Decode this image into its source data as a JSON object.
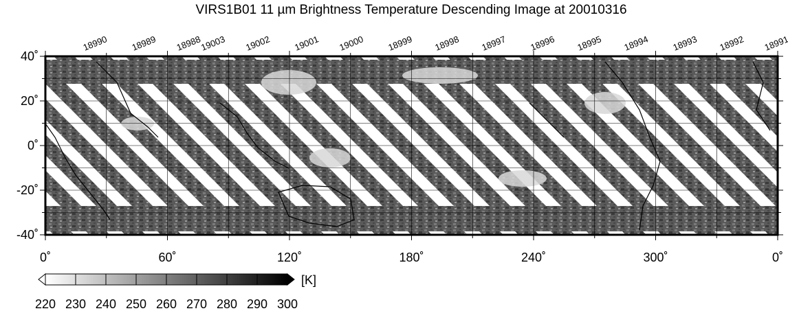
{
  "title": "VIRS1B01 11 µm Brightness Temperature Descending Image at 20010316",
  "map": {
    "lon_range": [
      0,
      360
    ],
    "lat_range": [
      -40,
      40
    ],
    "lon_tick_labels": [
      {
        "lon": 0,
        "label": "0˚"
      },
      {
        "lon": 60,
        "label": "60˚"
      },
      {
        "lon": 120,
        "label": "120˚"
      },
      {
        "lon": 180,
        "label": "180˚"
      },
      {
        "lon": 240,
        "label": "240˚"
      },
      {
        "lon": 300,
        "label": "300˚"
      },
      {
        "lon": 360,
        "label": "0˚"
      }
    ],
    "lat_tick_labels": [
      {
        "lat": 40,
        "label": "40˚"
      },
      {
        "lat": 20,
        "label": "20˚"
      },
      {
        "lat": 0,
        "label": "0˚"
      },
      {
        "lat": -20,
        "label": "-20˚"
      },
      {
        "lat": -40,
        "label": "-40˚"
      }
    ],
    "gridlines": true,
    "orbits": [
      {
        "label": "18990",
        "lon": 22
      },
      {
        "label": "18989",
        "lon": 46
      },
      {
        "label": "18988",
        "lon": 68
      },
      {
        "label": "19003",
        "lon": 80
      },
      {
        "label": "19002",
        "lon": 102
      },
      {
        "label": "19001",
        "lon": 126
      },
      {
        "label": "19000",
        "lon": 148
      },
      {
        "label": "18999",
        "lon": 172
      },
      {
        "label": "18998",
        "lon": 195
      },
      {
        "label": "18997",
        "lon": 218
      },
      {
        "label": "18996",
        "lon": 242
      },
      {
        "label": "18995",
        "lon": 265
      },
      {
        "label": "18994",
        "lon": 288
      },
      {
        "label": "18993",
        "lon": 312
      },
      {
        "label": "18992",
        "lon": 335
      },
      {
        "label": "18991",
        "lon": 357
      }
    ]
  },
  "colorbar": {
    "unit": "[K]",
    "min": 220,
    "max": 300,
    "tick_labels": [
      "220",
      "230",
      "240",
      "250",
      "260",
      "270",
      "280",
      "290",
      "300"
    ],
    "color_low": "#ffffff",
    "color_high": "#000000"
  }
}
